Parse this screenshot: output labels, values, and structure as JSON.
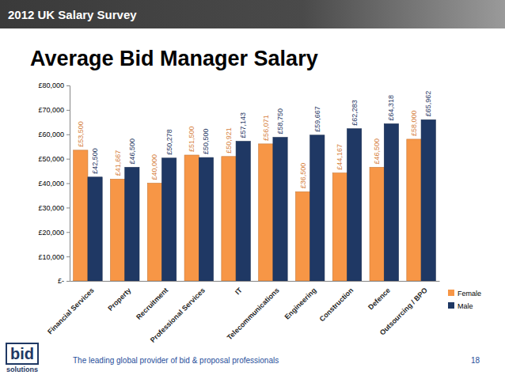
{
  "slide": {
    "header": "2012 UK Salary Survey",
    "footer": "The leading global provider of bid & proposal professionals",
    "page": 18,
    "logo": [
      "bid",
      "solutions"
    ]
  },
  "chart_data": {
    "type": "bar",
    "title": "Average Bid Manager Salary",
    "categories": [
      "Financial Services",
      "Property",
      "Recruitment",
      "Professional Services",
      "IT",
      "Telecommunications",
      "Engineering",
      "Construction",
      "Defence",
      "Outsourcing / BPO"
    ],
    "series": [
      {
        "name": "Female",
        "color": "#f79646",
        "values": [
          53500,
          41667,
          40000,
          51500,
          50921,
          56071,
          36500,
          44167,
          46500,
          58000
        ],
        "value_labels": [
          "£53,500",
          "£41,667",
          "£40,000",
          "£51,500",
          "£50,921",
          "£56,071",
          "£36,500",
          "£44,167",
          "£46,500",
          "£58,000"
        ]
      },
      {
        "name": "Male",
        "color": "#1f3864",
        "values": [
          42500,
          46500,
          50278,
          50500,
          57143,
          58750,
          59667,
          62283,
          64318,
          65962
        ],
        "value_labels": [
          "£42,500",
          "£46,500",
          "£50,278",
          "£50,500",
          "£57,143",
          "£58,750",
          "£59,667",
          "£62,283",
          "£64,318",
          "£65,962"
        ]
      }
    ],
    "ylim": [
      0,
      80000
    ],
    "yticks": [
      {
        "value": 0,
        "label": "£-"
      },
      {
        "value": 10000,
        "label": "£10,000"
      },
      {
        "value": 20000,
        "label": "£20,000"
      },
      {
        "value": 30000,
        "label": "£30,000"
      },
      {
        "value": 40000,
        "label": "£40,000"
      },
      {
        "value": 50000,
        "label": "£50,000"
      },
      {
        "value": 60000,
        "label": "£60,000"
      },
      {
        "value": 70000,
        "label": "£70,000"
      },
      {
        "value": 80000,
        "label": "£80,000"
      }
    ],
    "grid": false,
    "legend": "right",
    "data_labels": true
  }
}
